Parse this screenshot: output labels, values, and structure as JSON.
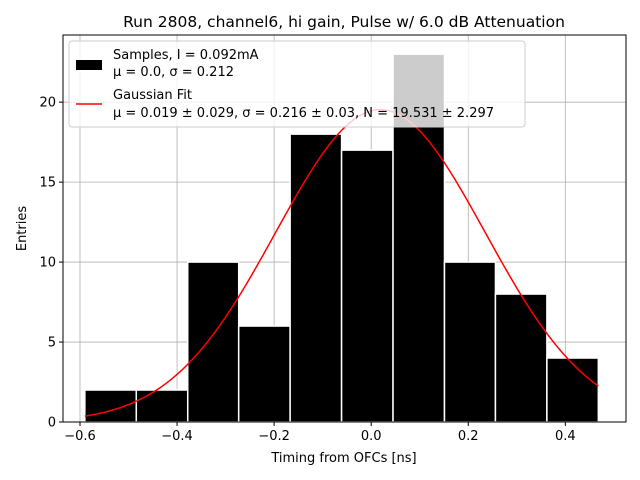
{
  "chart_data": {
    "type": "bar",
    "title": "Run 2808, channel6, hi gain, Pulse w/ 6.0 dB Attenuation",
    "xlabel": "Timing from OFCs [ns]",
    "ylabel": "Entries",
    "xlim": [
      -0.635,
      0.525
    ],
    "ylim": [
      0,
      24.2
    ],
    "grid": true,
    "xticks": [
      -0.6,
      -0.4,
      -0.2,
      0.0,
      0.2,
      0.4
    ],
    "xtick_labels": [
      "−0.6",
      "−0.4",
      "−0.2",
      "0.0",
      "0.2",
      "0.4"
    ],
    "yticks": [
      0,
      5,
      10,
      15,
      20
    ],
    "ytick_labels": [
      "0",
      "5",
      "10",
      "15",
      "20"
    ],
    "bin_edges": [
      -0.59,
      -0.484,
      -0.378,
      -0.273,
      -0.167,
      -0.061,
      0.045,
      0.151,
      0.256,
      0.362,
      0.468
    ],
    "counts": [
      2,
      2,
      10,
      6,
      18,
      17,
      23,
      10,
      8,
      4
    ],
    "fit": {
      "mu": 0.019,
      "sigma": 0.216,
      "N": 19.531,
      "x_range": [
        -0.59,
        0.468
      ]
    },
    "legend": {
      "location": "upper left",
      "entries": [
        {
          "line1": "Samples, I = 0.092mA",
          "line2": "μ = 0.0, σ = 0.212"
        },
        {
          "line1": "Gaussian Fit",
          "line2": "μ = 0.019 ± 0.029, σ = 0.216 ± 0.03, N = 19.531 ± 2.297"
        }
      ]
    },
    "colors": {
      "bars": "#000000",
      "bar_edge": "#ffffff",
      "fit_line": "#ff0000",
      "grid": "#b0b0b0"
    }
  }
}
